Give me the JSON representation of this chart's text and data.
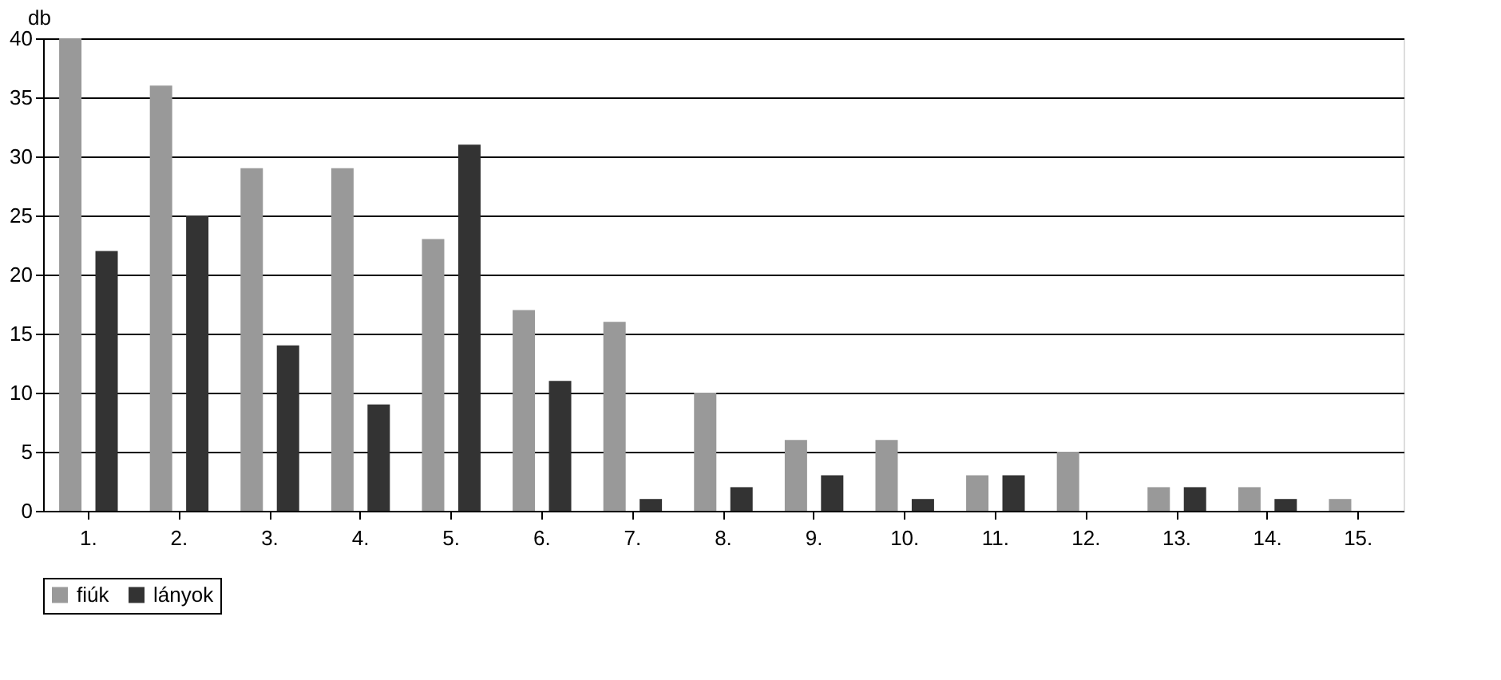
{
  "chart_data": {
    "type": "bar",
    "ylabel": "db",
    "categories": [
      "1.",
      "2.",
      "3.",
      "4.",
      "5.",
      "6.",
      "7.",
      "8.",
      "9.",
      "10.",
      "11.",
      "12.",
      "13.",
      "14.",
      "15."
    ],
    "series": [
      {
        "name": "fiúk",
        "color": "#999999",
        "values": [
          40,
          36,
          29,
          29,
          23,
          17,
          16,
          10,
          6,
          6,
          3,
          5,
          2,
          2,
          1
        ]
      },
      {
        "name": "lányok",
        "color": "#333333",
        "values": [
          22,
          25,
          14,
          9,
          31,
          11,
          1,
          2,
          3,
          1,
          3,
          0,
          2,
          1,
          0
        ]
      }
    ],
    "ylim": [
      0,
      40
    ],
    "yticks": [
      0,
      5,
      10,
      15,
      20,
      25,
      30,
      35,
      40
    ],
    "grid": "y",
    "legend": "bottom"
  }
}
